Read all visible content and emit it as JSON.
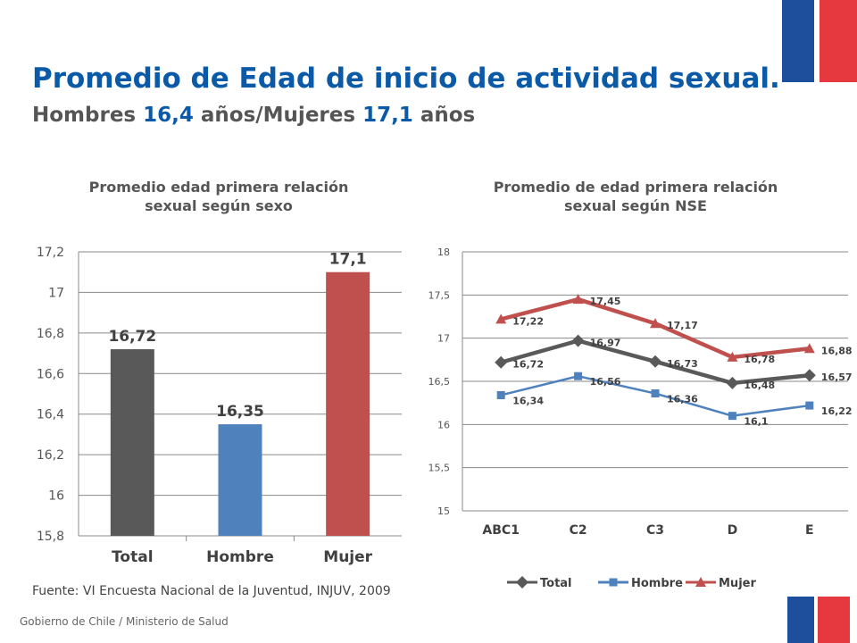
{
  "header": {
    "title": "Promedio de Edad de inicio de actividad sexual.",
    "subtitle_parts": [
      "Hombres ",
      "16,4",
      " años/Mujeres ",
      "17,1",
      " años"
    ]
  },
  "chart_data": [
    {
      "type": "bar",
      "title_lines": [
        "Promedio edad primera relación",
        "sexual según sexo"
      ],
      "categories": [
        "Total",
        "Hombre",
        "Mujer"
      ],
      "values": [
        16.72,
        16.35,
        17.1
      ],
      "value_labels": [
        "16,72",
        "16,35",
        "17,1"
      ],
      "colors": [
        "#595959",
        "#4f81bd",
        "#c0504d"
      ],
      "ylim": [
        15.8,
        17.2
      ],
      "yticks": [
        15.8,
        16,
        16.2,
        16.4,
        16.6,
        16.8,
        17,
        17.2
      ],
      "ytick_labels": [
        "15,8",
        "16",
        "16,2",
        "16,4",
        "16,6",
        "16,8",
        "17",
        "17,2"
      ],
      "grid": true,
      "legend": "none"
    },
    {
      "type": "line",
      "title_lines": [
        "Promedio de edad primera relación",
        "sexual según NSE"
      ],
      "categories": [
        "ABC1",
        "C2",
        "C3",
        "D",
        "E"
      ],
      "series": [
        {
          "name": "Total",
          "values": [
            16.72,
            16.97,
            16.73,
            16.48,
            16.57
          ],
          "labels": [
            "16,72",
            "16,97",
            "16,73",
            "16,48",
            "16,57"
          ],
          "color": "#595959",
          "marker": "diamond"
        },
        {
          "name": "Hombre",
          "values": [
            16.34,
            16.56,
            16.36,
            16.1,
            16.22
          ],
          "labels": [
            "16,34",
            "16,56",
            "16,36",
            "16,1",
            "16,22"
          ],
          "color": "#4f81bd",
          "marker": "square"
        },
        {
          "name": "Mujer",
          "values": [
            17.22,
            17.45,
            17.17,
            16.78,
            16.88
          ],
          "labels": [
            "17,22",
            "17,45",
            "17,17",
            "16,78",
            "16,88"
          ],
          "color": "#c0504d",
          "marker": "triangle"
        }
      ],
      "ylim": [
        15,
        18
      ],
      "yticks": [
        15,
        15.5,
        16,
        16.5,
        17,
        17.5,
        18
      ],
      "ytick_labels": [
        "15",
        "15,5",
        "16",
        "16,5",
        "17",
        "17,5",
        "18"
      ],
      "grid": true,
      "legend": "bottom"
    }
  ],
  "source": "Fuente:  VI Encuesta Nacional de la Juventud, INJUV, 2009",
  "footer": "Gobierno de Chile / Ministerio de Salud",
  "colors": {
    "title_blue": "#0a5aa8",
    "flag_blue": "#1d4f9c",
    "flag_red": "#e5383f"
  }
}
